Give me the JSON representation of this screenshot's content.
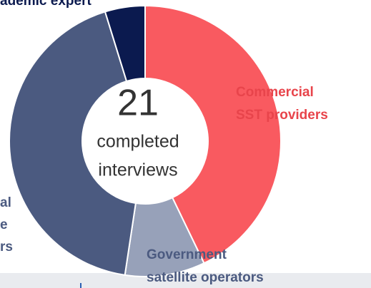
{
  "chart_data": {
    "type": "donut",
    "center_value": 21,
    "center_text": [
      "completed",
      "interviews"
    ],
    "categories": [
      [
        "Commercial",
        "SST providers"
      ],
      [
        "Government",
        "satellite operators"
      ],
      [
        "al",
        "e",
        "rs"
      ],
      [
        "ademic expert"
      ]
    ],
    "values": [
      9,
      2,
      9,
      1
    ],
    "colors": [
      "#f95a60",
      "#97a1b9",
      "#4b5a80",
      "#0b1a4f"
    ],
    "label_colors": [
      "#e8444b",
      "#4b5a80",
      "#4b5a80",
      "#0b1a4f"
    ]
  }
}
